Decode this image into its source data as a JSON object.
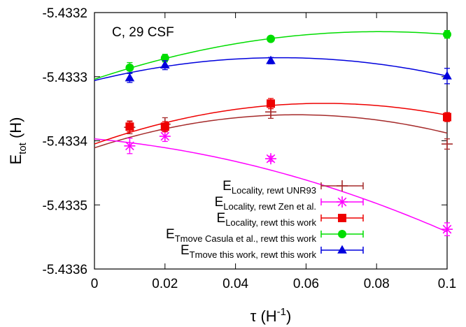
{
  "chart_data": {
    "type": "scatter",
    "annotation": "C, 29 CSF",
    "xlabel": {
      "main": "τ (H",
      "sup": "-1",
      "tail": ")"
    },
    "ylabel": {
      "main": "E",
      "sub": "tot",
      "tail": " (H)"
    },
    "xlim": [
      0,
      0.1
    ],
    "ylim": [
      -5.4336,
      -5.4332
    ],
    "xticks": [
      "0",
      "0.02",
      "0.04",
      "0.06",
      "0.08",
      "0.1"
    ],
    "xtick_values": [
      0,
      0.02,
      0.04,
      0.06,
      0.08,
      0.1
    ],
    "yticks": [
      "-5.4336",
      "-5.4335",
      "-5.4334",
      "-5.4333",
      "-5.4332"
    ],
    "ytick_values": [
      -5.4336,
      -5.4335,
      -5.4334,
      -5.4333,
      -5.4332
    ],
    "grid": false,
    "legend_position": "bottom-right",
    "series": [
      {
        "name_main": "E",
        "name_sub": "Locality, rewt UNR93",
        "color": "#a52a2a",
        "marker": "plus",
        "x": [
          0.01,
          0.02,
          0.05,
          0.1
        ],
        "y": [
          -5.433379,
          -5.433374,
          -5.433355,
          -5.433405
        ],
        "err": [
          1e-05,
          1e-05,
          1e-05,
          8e-06
        ],
        "fit": [
          -5.433411,
          0.0018,
          -0.0157
        ]
      },
      {
        "name_main": "E",
        "name_sub": "Locality, rewt Zen et al.",
        "color": "#ff00ff",
        "marker": "star",
        "x": [
          0.01,
          0.02,
          0.05,
          0.1
        ],
        "y": [
          -5.433408,
          -5.433393,
          -5.433428,
          -5.433538
        ],
        "err": [
          1.2e-05,
          8e-06,
          4e-06,
          1e-05
        ],
        "fit": [
          -5.433397,
          -0.0005,
          -0.0095
        ]
      },
      {
        "name_main": "E",
        "name_sub": "Locality, rewt this work",
        "color": "#ee0000",
        "marker": "square",
        "x": [
          0.01,
          0.02,
          0.05,
          0.1
        ],
        "y": [
          -5.433378,
          -5.433378,
          -5.433342,
          -5.433363
        ],
        "err": [
          8e-06,
          8e-06,
          8e-06,
          7e-06
        ],
        "fit": [
          -5.433405,
          0.00195,
          -0.015
        ]
      },
      {
        "name_main": "E",
        "name_sub": "Tmove Casula et al., rewt this work",
        "color": "#00dd00",
        "marker": "circle",
        "x": [
          0.01,
          0.02,
          0.05,
          0.1
        ],
        "y": [
          -5.433286,
          -5.433271,
          -5.433241,
          -5.433234
        ],
        "err": [
          8e-06,
          6e-06,
          3e-06,
          6e-06
        ],
        "fit": [
          -5.433304,
          0.00184,
          -0.0114
        ]
      },
      {
        "name_main": "E",
        "name_sub": "Tmove this work, rewt this work",
        "color": "#0000dd",
        "marker": "triangle",
        "x": [
          0.01,
          0.02,
          0.05,
          0.1
        ],
        "y": [
          -5.433302,
          -5.433282,
          -5.433275,
          -5.433299
        ],
        "err": [
          7e-06,
          7e-06,
          5e-06,
          1.2e-05
        ],
        "fit": [
          -5.433306,
          0.00135,
          -0.0128
        ]
      }
    ]
  }
}
